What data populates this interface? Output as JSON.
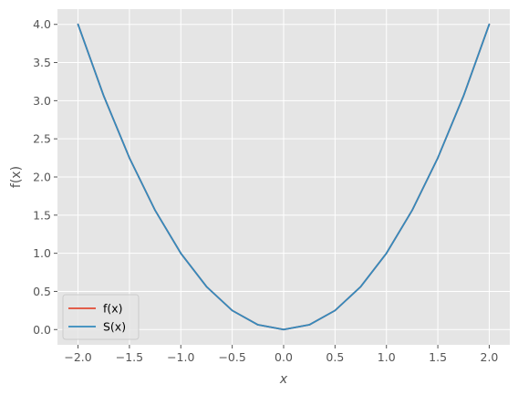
{
  "chart_data": {
    "type": "line",
    "xlabel": "x",
    "ylabel": "f(x)",
    "xlim": [
      -2.2,
      2.2
    ],
    "ylim": [
      -0.2,
      4.2
    ],
    "x_ticks": [
      -2.0,
      -1.5,
      -1.0,
      -0.5,
      0.0,
      0.5,
      1.0,
      1.5,
      2.0
    ],
    "x_tick_labels": [
      "−2.0",
      "−1.5",
      "−1.0",
      "−0.5",
      "0.0",
      "0.5",
      "1.0",
      "1.5",
      "2.0"
    ],
    "y_ticks": [
      0.0,
      0.5,
      1.0,
      1.5,
      2.0,
      2.5,
      3.0,
      3.5,
      4.0
    ],
    "y_tick_labels": [
      "0.0",
      "0.5",
      "1.0",
      "1.5",
      "2.0",
      "2.5",
      "3.0",
      "3.5",
      "4.0"
    ],
    "grid": true,
    "legend_position": "lower-left",
    "colors": {
      "background": "#e5e5e5",
      "grid": "#ffffff",
      "f": "#e24a33",
      "S": "#348abd"
    },
    "series": [
      {
        "name": "f(x)",
        "x": [
          -2.0,
          -1.75,
          -1.5,
          -1.25,
          -1.0,
          -0.75,
          -0.5,
          -0.25,
          0.0,
          0.25,
          0.5,
          0.75,
          1.0,
          1.25,
          1.5,
          1.75,
          2.0
        ],
        "y": [
          4.0,
          3.0625,
          2.25,
          1.5625,
          1.0,
          0.5625,
          0.25,
          0.0625,
          0.0,
          0.0625,
          0.25,
          0.5625,
          1.0,
          1.5625,
          2.25,
          3.0625,
          4.0
        ]
      },
      {
        "name": "S(x)",
        "x": [
          -2.0,
          -1.75,
          -1.5,
          -1.25,
          -1.0,
          -0.75,
          -0.5,
          -0.25,
          0.0,
          0.25,
          0.5,
          0.75,
          1.0,
          1.25,
          1.5,
          1.75,
          2.0
        ],
        "y": [
          4.0,
          3.0625,
          2.25,
          1.5625,
          1.0,
          0.5625,
          0.25,
          0.0625,
          0.0,
          0.0625,
          0.25,
          0.5625,
          1.0,
          1.5625,
          2.25,
          3.0625,
          4.0
        ]
      }
    ]
  }
}
